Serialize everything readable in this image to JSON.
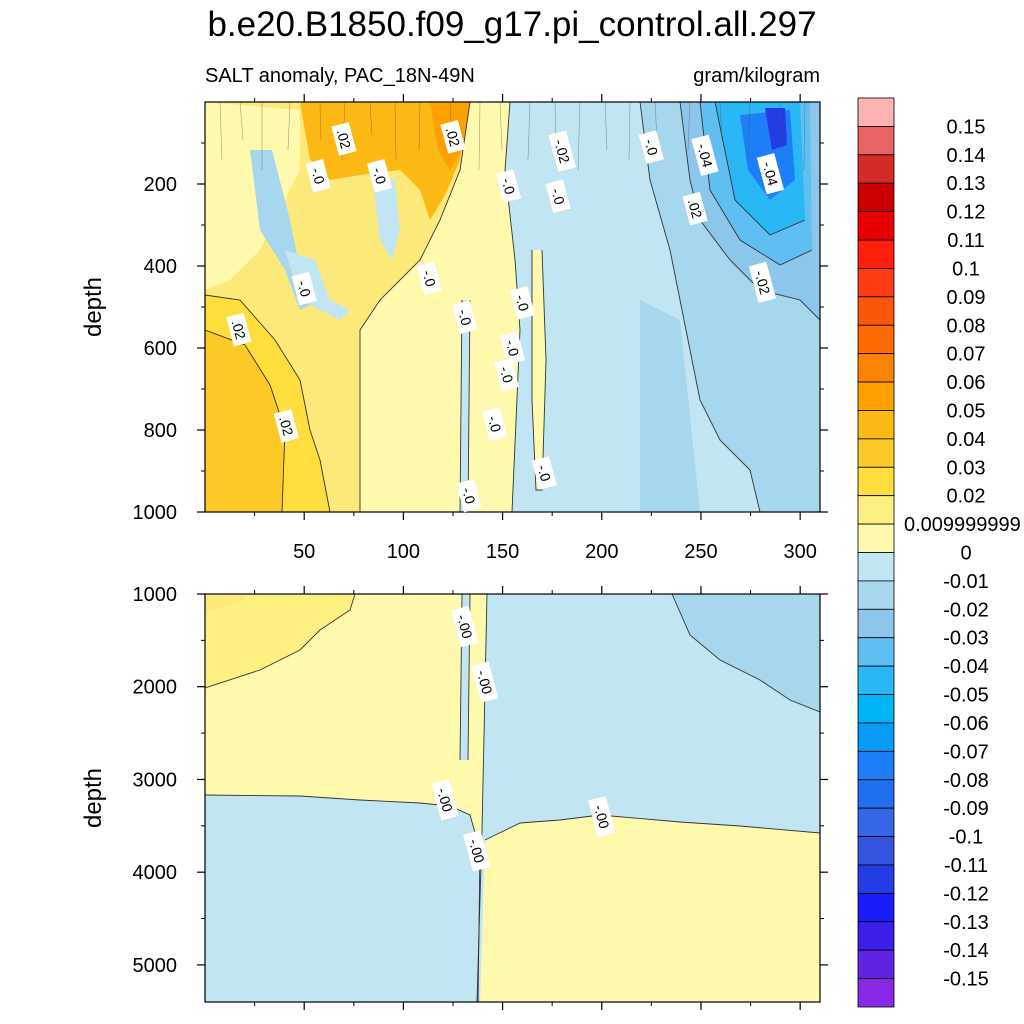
{
  "chart_data": {
    "type": "heatmap",
    "title": "b.e20.B1850.f09_g17.pi_control.all.297",
    "subtitle_left": "SALT anomaly, PAC_18N-49N",
    "subtitle_right": "gram/kilogram",
    "x_ticks": [
      50,
      100,
      150,
      200,
      250,
      300
    ],
    "x_range": [
      0,
      310
    ],
    "panels": [
      {
        "name": "upper",
        "ylabel": "depth",
        "y_range": [
          0,
          1000
        ],
        "y_ticks": [
          200,
          400,
          600,
          800,
          1000
        ],
        "contour_labels": [
          {
            "text": ".02",
            "x": 70,
            "y": 90
          },
          {
            "text": ".02",
            "x": 125,
            "y": 85
          },
          {
            "text": "-.02",
            "x": 180,
            "y": 120
          },
          {
            "text": "-.0",
            "x": 225,
            "y": 110
          },
          {
            "text": "-.04",
            "x": 252,
            "y": 130
          },
          {
            "text": "-.04",
            "x": 285,
            "y": 175
          },
          {
            "text": "-.0",
            "x": 57,
            "y": 180
          },
          {
            "text": "-.0",
            "x": 88,
            "y": 180
          },
          {
            "text": "-.0",
            "x": 153,
            "y": 205
          },
          {
            "text": "-.0",
            "x": 178,
            "y": 230
          },
          {
            "text": ".02",
            "x": 247,
            "y": 260
          },
          {
            "text": "-.02",
            "x": 281,
            "y": 440
          },
          {
            "text": "-.0",
            "x": 50,
            "y": 455
          },
          {
            "text": "-.0",
            "x": 113,
            "y": 430
          },
          {
            "text": "-.0",
            "x": 160,
            "y": 490
          },
          {
            "text": ".02",
            "x": 17,
            "y": 555
          },
          {
            "text": "-.0",
            "x": 131,
            "y": 525
          },
          {
            "text": "-.0",
            "x": 155,
            "y": 600
          },
          {
            "text": "-.0",
            "x": 152,
            "y": 665
          },
          {
            "text": "-.0",
            "x": 146,
            "y": 785
          },
          {
            "text": ".02",
            "x": 41,
            "y": 790
          },
          {
            "text": "-.0",
            "x": 171,
            "y": 905
          },
          {
            "text": "-.0",
            "x": 133,
            "y": 960
          }
        ]
      },
      {
        "name": "lower",
        "ylabel": "depth",
        "y_range": [
          1000,
          5400
        ],
        "y_ticks": [
          1000,
          2000,
          3000,
          4000,
          5000
        ],
        "contour_labels": [
          {
            "text": "-.00",
            "x": 131,
            "y": 1350
          },
          {
            "text": "-.00",
            "x": 141,
            "y": 1950
          },
          {
            "text": "-.00",
            "x": 121,
            "y": 3220
          },
          {
            "text": "-.00",
            "x": 200,
            "y": 3400
          },
          {
            "text": "-.00",
            "x": 137,
            "y": 3770
          }
        ]
      }
    ],
    "colorbar": {
      "labels": [
        "0.15",
        "0.14",
        "0.13",
        "0.12",
        "0.11",
        "0.1",
        "0.09",
        "0.08",
        "0.07",
        "0.06",
        "0.05",
        "0.04",
        "0.03",
        "0.02",
        "0.009999999",
        "0",
        "-0.01",
        "-0.02",
        "-0.03",
        "-0.04",
        "-0.05",
        "-0.06",
        "-0.07",
        "-0.08",
        "-0.09",
        "-0.1",
        "-0.11",
        "-0.12",
        "-0.13",
        "-0.14",
        "-0.15"
      ],
      "colors": [
        "#feb3b3",
        "#e66464",
        "#d42a2a",
        "#cd0000",
        "#e80000",
        "#ff1f0d",
        "#ff3c14",
        "#fc5708",
        "#ff6a00",
        "#fd8305",
        "#ffa000",
        "#fdb913",
        "#fdc926",
        "#fdde3c",
        "#fdf081",
        "#fef9ad",
        "#c2e5f4",
        "#a7d7ef",
        "#8dc6eb",
        "#60bff2",
        "#2ab7f5",
        "#00b5f5",
        "#089bf7",
        "#1c7ff7",
        "#1f6ff0",
        "#3367e6",
        "#3355dd",
        "#233ce6",
        "#1b1cfa",
        "#3d1fea",
        "#6023e3",
        "#8a28e8"
      ]
    }
  }
}
